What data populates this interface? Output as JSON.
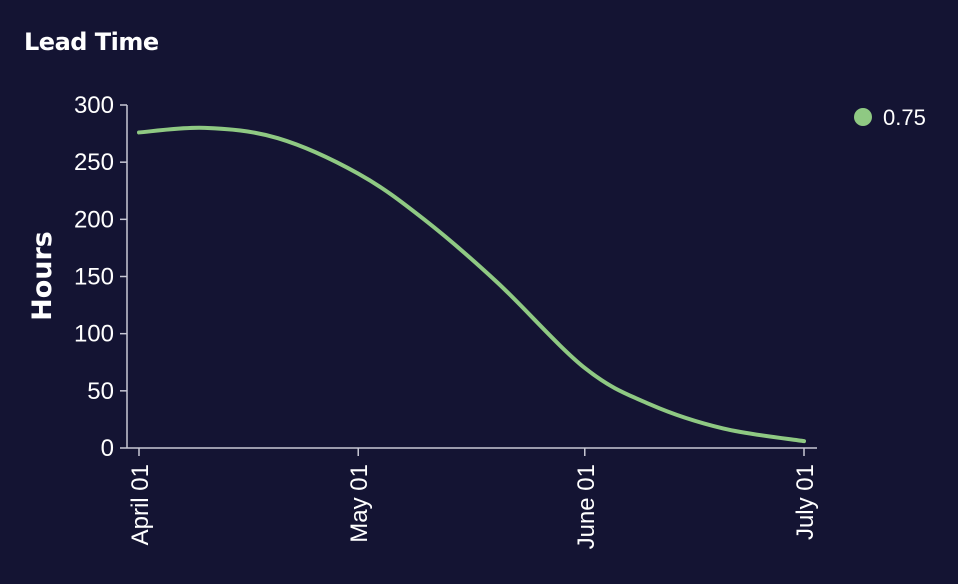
{
  "chart_data": {
    "type": "line",
    "title": "Lead Time",
    "xlabel": "",
    "ylabel": "Hours",
    "x_ticks": [
      "2024-04-01",
      "2024-05-01",
      "2024-06-01",
      "2024-07-01"
    ],
    "x_tick_labels": [
      "April 01",
      "May 01",
      "June 01",
      "July 01"
    ],
    "xlim": [
      "2024-04-01",
      "2024-07-01"
    ],
    "ylim": [
      0,
      300
    ],
    "y_ticks": [
      0,
      50,
      100,
      150,
      200,
      250,
      300
    ],
    "grid": false,
    "legend_position": "top-right",
    "series": [
      {
        "name": "0.75",
        "color": "#8fc983",
        "x": [
          "2024-04-01",
          "2024-04-10",
          "2024-04-20",
          "2024-05-01",
          "2024-05-10",
          "2024-05-20",
          "2024-06-01",
          "2024-06-10",
          "2024-06-20",
          "2024-07-01"
        ],
        "y": [
          276,
          280,
          271,
          240,
          200,
          145,
          70,
          38,
          17,
          6
        ]
      }
    ]
  }
}
